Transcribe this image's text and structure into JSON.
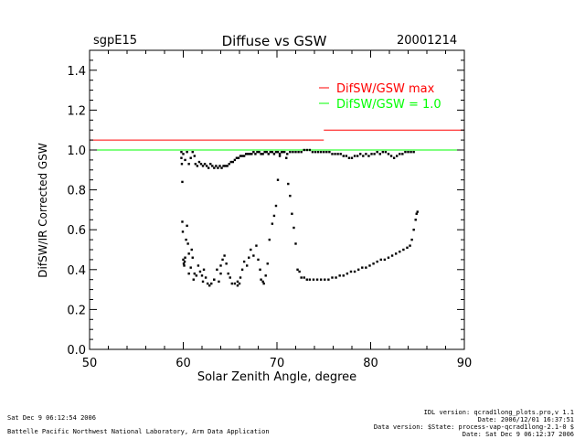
{
  "header": {
    "site": "sgpE15",
    "title": "Diffuse vs GSW",
    "date": "20001214"
  },
  "footer": {
    "left_line1": "Sat Dec  9 06:12:54 2006",
    "left_line2": "Battelle Pacific Northwest National Laboratory, Arm Data Application",
    "right_line1": "IDL version: qcrad1long_plots.pro,v 1.1",
    "right_line2": "Date: 2006/12/01 16:37:51",
    "right_line3": "Data version: $State: process-vap-qcrad1long-2.1-0 $",
    "right_line4": "Date: Sat Dec  9 06:12:37 2006"
  },
  "colors": {
    "axes": "#000000",
    "max_line": "#ff0000",
    "unity_line": "#00ff00",
    "points": "#000000"
  },
  "chart_data": {
    "type": "scatter",
    "title": "Diffuse vs GSW",
    "xlabel": "Solar Zenith Angle, degree",
    "ylabel": "DifSW/IR Corrected GSW",
    "xlim": [
      50,
      90
    ],
    "ylim": [
      0.0,
      1.5
    ],
    "xticks": [
      50,
      60,
      70,
      80,
      90
    ],
    "yticks": [
      0.0,
      0.2,
      0.4,
      0.6,
      0.8,
      1.0,
      1.2,
      1.4
    ],
    "xtick_labels": [
      "50",
      "60",
      "70",
      "80",
      "90"
    ],
    "ytick_labels": [
      "0.0",
      "0.2",
      "0.4",
      "0.6",
      "0.8",
      "1.0",
      "1.2",
      "1.4"
    ],
    "grid": false,
    "legend_position": "top-right",
    "legend": [
      {
        "label": "DifSW/GSW max",
        "color": "#ff0000"
      },
      {
        "label": "DifSW/GSW = 1.0",
        "color": "#00ff00"
      }
    ],
    "reference_lines": [
      {
        "name": "DifSW/GSW max",
        "color": "#ff0000",
        "segments": [
          {
            "x": [
              50,
              75
            ],
            "y": 1.05
          },
          {
            "x": [
              75,
              90
            ],
            "y": 1.1
          }
        ]
      },
      {
        "name": "DifSW/GSW = 1.0",
        "color": "#00ff00",
        "segments": [
          {
            "x": [
              50,
              90
            ],
            "y": 1.0
          }
        ]
      }
    ],
    "series": [
      {
        "points": [
          [
            59.8,
            0.99
          ],
          [
            59.85,
            0.93
          ],
          [
            59.9,
            0.84
          ],
          [
            59.9,
            0.64
          ],
          [
            59.95,
            0.59
          ],
          [
            60.0,
            0.45
          ],
          [
            60.05,
            0.43
          ],
          [
            60.1,
            0.42
          ],
          [
            60.15,
            0.44
          ],
          [
            60.2,
            0.46
          ],
          [
            60.3,
            0.55
          ],
          [
            60.4,
            0.62
          ],
          [
            60.5,
            0.53
          ],
          [
            60.6,
            0.48
          ],
          [
            60.8,
            0.41
          ],
          [
            60.9,
            0.5
          ],
          [
            61.0,
            0.46
          ],
          [
            61.2,
            0.38
          ],
          [
            61.4,
            0.37
          ],
          [
            61.6,
            0.42
          ],
          [
            61.8,
            0.39
          ],
          [
            62.0,
            0.37
          ],
          [
            62.2,
            0.4
          ],
          [
            62.4,
            0.36
          ],
          [
            62.6,
            0.33
          ],
          [
            62.8,
            0.32
          ],
          [
            63.0,
            0.33
          ],
          [
            63.3,
            0.35
          ],
          [
            63.6,
            0.4
          ],
          [
            64.0,
            0.42
          ],
          [
            64.2,
            0.45
          ],
          [
            64.4,
            0.47
          ],
          [
            64.6,
            0.43
          ],
          [
            64.8,
            0.38
          ],
          [
            65.0,
            0.36
          ],
          [
            65.2,
            0.33
          ],
          [
            65.5,
            0.33
          ],
          [
            65.8,
            0.34
          ],
          [
            66.1,
            0.36
          ],
          [
            66.3,
            0.4
          ],
          [
            66.5,
            0.44
          ],
          [
            66.8,
            0.42
          ],
          [
            67.0,
            0.46
          ],
          [
            67.2,
            0.5
          ],
          [
            67.5,
            0.47
          ],
          [
            67.8,
            0.52
          ],
          [
            68.0,
            0.45
          ],
          [
            68.2,
            0.4
          ],
          [
            68.5,
            0.34
          ],
          [
            68.8,
            0.37
          ],
          [
            69.0,
            0.43
          ],
          [
            69.2,
            0.55
          ],
          [
            69.5,
            0.63
          ],
          [
            69.7,
            0.67
          ],
          [
            69.9,
            0.72
          ],
          [
            70.1,
            0.85
          ],
          [
            70.3,
            0.97
          ],
          [
            70.6,
            0.99
          ],
          [
            71.0,
            0.96
          ],
          [
            71.2,
            0.83
          ],
          [
            71.4,
            0.77
          ],
          [
            71.6,
            0.68
          ],
          [
            71.8,
            0.61
          ],
          [
            72.0,
            0.53
          ],
          [
            72.2,
            0.4
          ],
          [
            72.4,
            0.39
          ],
          [
            72.6,
            0.36
          ],
          [
            72.9,
            0.36
          ],
          [
            73.2,
            0.35
          ],
          [
            73.5,
            0.35
          ],
          [
            73.9,
            0.35
          ],
          [
            74.3,
            0.35
          ],
          [
            74.7,
            0.35
          ],
          [
            75.1,
            0.35
          ],
          [
            75.5,
            0.35
          ],
          [
            75.9,
            0.36
          ],
          [
            76.3,
            0.36
          ],
          [
            76.7,
            0.37
          ],
          [
            77.1,
            0.37
          ],
          [
            77.5,
            0.38
          ],
          [
            77.9,
            0.39
          ],
          [
            78.3,
            0.39
          ],
          [
            78.7,
            0.4
          ],
          [
            79.1,
            0.41
          ],
          [
            79.5,
            0.41
          ],
          [
            79.9,
            0.42
          ],
          [
            80.3,
            0.43
          ],
          [
            80.7,
            0.44
          ],
          [
            81.1,
            0.45
          ],
          [
            81.5,
            0.45
          ],
          [
            81.9,
            0.46
          ],
          [
            82.3,
            0.47
          ],
          [
            82.7,
            0.48
          ],
          [
            83.1,
            0.49
          ],
          [
            83.5,
            0.5
          ],
          [
            83.9,
            0.51
          ],
          [
            84.2,
            0.52
          ],
          [
            84.4,
            0.55
          ],
          [
            84.6,
            0.6
          ],
          [
            84.8,
            0.65
          ],
          [
            84.9,
            0.68
          ],
          [
            85.0,
            0.69
          ],
          [
            59.8,
            0.96
          ],
          [
            60.0,
            0.98
          ],
          [
            60.2,
            0.95
          ],
          [
            60.4,
            0.99
          ],
          [
            60.6,
            0.93
          ],
          [
            60.8,
            0.96
          ],
          [
            61.0,
            0.99
          ],
          [
            61.2,
            0.97
          ],
          [
            61.3,
            0.93
          ],
          [
            61.5,
            0.92
          ],
          [
            61.7,
            0.94
          ],
          [
            61.9,
            0.93
          ],
          [
            62.1,
            0.92
          ],
          [
            62.3,
            0.93
          ],
          [
            62.5,
            0.92
          ],
          [
            62.7,
            0.91
          ],
          [
            62.9,
            0.93
          ],
          [
            63.1,
            0.92
          ],
          [
            63.3,
            0.91
          ],
          [
            63.5,
            0.92
          ],
          [
            63.7,
            0.91
          ],
          [
            63.9,
            0.92
          ],
          [
            64.1,
            0.91
          ],
          [
            64.3,
            0.92
          ],
          [
            64.5,
            0.92
          ],
          [
            64.7,
            0.92
          ],
          [
            64.9,
            0.93
          ],
          [
            65.1,
            0.94
          ],
          [
            65.3,
            0.94
          ],
          [
            65.5,
            0.95
          ],
          [
            65.7,
            0.96
          ],
          [
            65.9,
            0.96
          ],
          [
            66.1,
            0.97
          ],
          [
            66.3,
            0.97
          ],
          [
            66.5,
            0.97
          ],
          [
            66.7,
            0.98
          ],
          [
            66.9,
            0.98
          ],
          [
            67.1,
            0.98
          ],
          [
            67.3,
            0.98
          ],
          [
            67.5,
            0.99
          ],
          [
            67.7,
            0.98
          ],
          [
            67.9,
            0.99
          ],
          [
            68.1,
            0.99
          ],
          [
            68.3,
            0.98
          ],
          [
            68.5,
            0.98
          ],
          [
            68.7,
            0.99
          ],
          [
            68.9,
            0.99
          ],
          [
            69.1,
            0.98
          ],
          [
            69.3,
            0.99
          ],
          [
            69.5,
            0.99
          ],
          [
            69.7,
            0.98
          ],
          [
            69.9,
            0.99
          ],
          [
            70.1,
            0.99
          ],
          [
            70.3,
            0.98
          ],
          [
            70.5,
            0.99
          ],
          [
            70.8,
            0.99
          ],
          [
            71.1,
            0.98
          ],
          [
            71.4,
            0.99
          ],
          [
            71.7,
            0.99
          ],
          [
            72.0,
            0.99
          ],
          [
            72.3,
            0.99
          ],
          [
            72.6,
            0.99
          ],
          [
            72.9,
            1.0
          ],
          [
            73.2,
            1.0
          ],
          [
            73.5,
            1.0
          ],
          [
            73.8,
            0.99
          ],
          [
            74.1,
            0.99
          ],
          [
            74.4,
            0.99
          ],
          [
            74.7,
            0.99
          ],
          [
            75.0,
            0.99
          ],
          [
            75.3,
            0.99
          ],
          [
            75.6,
            0.99
          ],
          [
            75.9,
            0.98
          ],
          [
            76.2,
            0.98
          ],
          [
            76.5,
            0.98
          ],
          [
            76.8,
            0.98
          ],
          [
            77.1,
            0.97
          ],
          [
            77.4,
            0.97
          ],
          [
            77.7,
            0.96
          ],
          [
            78.0,
            0.96
          ],
          [
            78.3,
            0.97
          ],
          [
            78.6,
            0.97
          ],
          [
            78.9,
            0.98
          ],
          [
            79.2,
            0.97
          ],
          [
            79.5,
            0.98
          ],
          [
            79.8,
            0.97
          ],
          [
            80.1,
            0.98
          ],
          [
            80.4,
            0.98
          ],
          [
            80.7,
            0.99
          ],
          [
            81.0,
            0.98
          ],
          [
            81.3,
            0.99
          ],
          [
            81.6,
            0.99
          ],
          [
            81.9,
            0.98
          ],
          [
            82.2,
            0.97
          ],
          [
            82.5,
            0.96
          ],
          [
            82.8,
            0.97
          ],
          [
            83.1,
            0.98
          ],
          [
            83.4,
            0.98
          ],
          [
            83.7,
            0.99
          ],
          [
            84.0,
            0.99
          ],
          [
            84.3,
            0.99
          ],
          [
            84.6,
            0.99
          ],
          [
            63.3,
            0.35
          ],
          [
            64.0,
            0.38
          ],
          [
            65.8,
            0.32
          ],
          [
            66.0,
            0.33
          ],
          [
            68.3,
            0.35
          ],
          [
            68.6,
            0.33
          ],
          [
            60.6,
            0.38
          ],
          [
            61.1,
            0.35
          ],
          [
            62.1,
            0.34
          ],
          [
            63.8,
            0.34
          ]
        ]
      }
    ]
  }
}
